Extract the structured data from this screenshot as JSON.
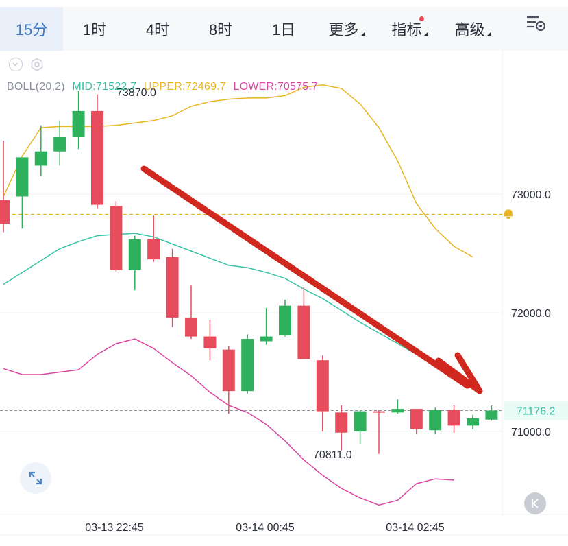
{
  "tabs": [
    {
      "label": "15分",
      "active": true
    },
    {
      "label": "1时"
    },
    {
      "label": "4时"
    },
    {
      "label": "8时"
    },
    {
      "label": "1日"
    },
    {
      "label": "更多",
      "caret": true
    },
    {
      "label": "指标",
      "caret": true,
      "dot": true
    },
    {
      "label": "高级",
      "caret": true
    }
  ],
  "indicator": {
    "name": "BOLL(20,2)",
    "mid": "MID:71522.7",
    "upper": "UPPER:72469.7",
    "lower": "LOWER:70575.7"
  },
  "colors": {
    "up": "#2fb05c",
    "down": "#e74c5c",
    "mid": "#36c2a5",
    "upper": "#e8b523",
    "lower": "#d946a0",
    "arrow": "#d0281e",
    "alert": "#e8b523",
    "current": "#36c2a5"
  },
  "chart_data": {
    "type": "candlestick",
    "y_ticks": [
      "73000.0",
      "72000.0",
      "71000.0"
    ],
    "x_labels": [
      "03-13 22:45",
      "03-14 00:45",
      "03-14 02:45"
    ],
    "last_price_label": "71176.2",
    "high_label": "73870.0",
    "low_label": "70811.0",
    "alert_price": 72830,
    "candles": [
      {
        "o": 72950,
        "h": 73450,
        "l": 72680,
        "c": 72750
      },
      {
        "o": 72980,
        "h": 73300,
        "l": 72710,
        "c": 73310
      },
      {
        "o": 73240,
        "h": 73580,
        "l": 73150,
        "c": 73360
      },
      {
        "o": 73360,
        "h": 73620,
        "l": 73240,
        "c": 73480
      },
      {
        "o": 73480,
        "h": 73870,
        "l": 73380,
        "c": 73700
      },
      {
        "o": 73700,
        "h": 73840,
        "l": 72880,
        "c": 72910
      },
      {
        "o": 72900,
        "h": 72940,
        "l": 72350,
        "c": 72360
      },
      {
        "o": 72360,
        "h": 72650,
        "l": 72190,
        "c": 72620
      },
      {
        "o": 72620,
        "h": 72820,
        "l": 72430,
        "c": 72450
      },
      {
        "o": 72470,
        "h": 72540,
        "l": 71880,
        "c": 71960
      },
      {
        "o": 71960,
        "h": 72230,
        "l": 71780,
        "c": 71800
      },
      {
        "o": 71800,
        "h": 71940,
        "l": 71600,
        "c": 71700
      },
      {
        "o": 71690,
        "h": 71720,
        "l": 71150,
        "c": 71340
      },
      {
        "o": 71340,
        "h": 71820,
        "l": 71320,
        "c": 71780
      },
      {
        "o": 71760,
        "h": 72040,
        "l": 71730,
        "c": 71800
      },
      {
        "o": 71810,
        "h": 72110,
        "l": 71800,
        "c": 72060
      },
      {
        "o": 72060,
        "h": 72220,
        "l": 71610,
        "c": 71610
      },
      {
        "o": 71600,
        "h": 71640,
        "l": 71000,
        "c": 71170
      },
      {
        "o": 71160,
        "h": 71220,
        "l": 70840,
        "c": 70990
      },
      {
        "o": 71000,
        "h": 71180,
        "l": 70890,
        "c": 71170
      },
      {
        "o": 71170,
        "h": 71180,
        "l": 70811,
        "c": 71160
      },
      {
        "o": 71160,
        "h": 71270,
        "l": 71150,
        "c": 71190
      },
      {
        "o": 71190,
        "h": 71190,
        "l": 70980,
        "c": 71020
      },
      {
        "o": 71010,
        "h": 71200,
        "l": 70980,
        "c": 71180
      },
      {
        "o": 71180,
        "h": 71220,
        "l": 70990,
        "c": 71050
      },
      {
        "o": 71050,
        "h": 71140,
        "l": 71020,
        "c": 71110
      },
      {
        "o": 71100,
        "h": 71220,
        "l": 71090,
        "c": 71176.2
      }
    ],
    "upper_band": [
      72980,
      73320,
      73560,
      73570,
      73570,
      73570,
      73580,
      73600,
      73620,
      73660,
      73740,
      73780,
      73800,
      73810,
      73810,
      73830,
      73900,
      73920,
      73890,
      73760,
      73560,
      73280,
      72920,
      72710,
      72560,
      72470
    ],
    "mid_band": [
      72240,
      72340,
      72440,
      72540,
      72600,
      72650,
      72660,
      72670,
      72640,
      72580,
      72520,
      72460,
      72400,
      72380,
      72340,
      72290,
      72200,
      72120,
      72020,
      71920,
      71830,
      71740,
      71650,
      71560,
      71500
    ],
    "lower_band": [
      71530,
      71480,
      71480,
      71500,
      71520,
      71650,
      71740,
      71780,
      71700,
      71580,
      71470,
      71330,
      71220,
      71160,
      71060,
      70920,
      70760,
      70630,
      70520,
      70440,
      70380,
      70420,
      70560,
      70600,
      70590
    ]
  }
}
